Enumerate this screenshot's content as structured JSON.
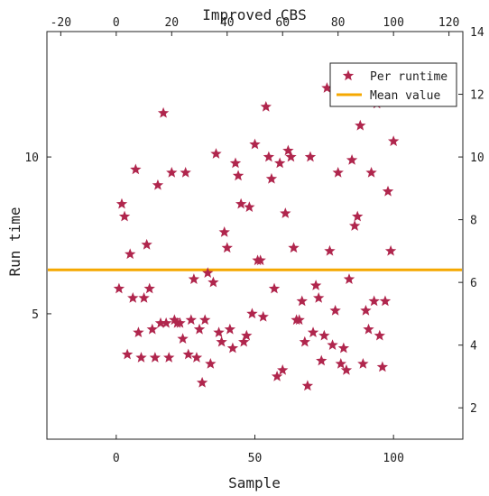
{
  "chart_data": {
    "type": "scatter",
    "title": "",
    "xlabel": "Sample",
    "ylabel": "Run time",
    "top_xlabel": "Improved CBS",
    "xlim": [
      -25,
      125
    ],
    "ylim": [
      1,
      14
    ],
    "bottom_xticks": [
      0,
      50,
      100
    ],
    "top_xticks": [
      -20,
      0,
      20,
      40,
      60,
      80,
      100,
      120
    ],
    "left_yticks": [
      5,
      10
    ],
    "right_yticks": [
      2,
      4,
      6,
      8,
      10,
      12,
      14
    ],
    "grid": false,
    "legend_position": "top-right",
    "colors": {
      "points": "#b0264d",
      "mean": "#f5a800",
      "axes": "#222222"
    },
    "series": [
      {
        "name": "Per runtime",
        "marker": "star",
        "x": [
          1,
          2,
          3,
          4,
          5,
          6,
          7,
          8,
          9,
          10,
          11,
          12,
          13,
          14,
          15,
          16,
          17,
          18,
          19,
          20,
          21,
          22,
          23,
          24,
          25,
          26,
          27,
          28,
          29,
          30,
          31,
          32,
          33,
          34,
          35,
          36,
          37,
          38,
          39,
          40,
          41,
          42,
          43,
          44,
          45,
          46,
          47,
          48,
          49,
          50,
          51,
          52,
          53,
          54,
          55,
          56,
          57,
          58,
          59,
          60,
          61,
          62,
          63,
          64,
          65,
          66,
          67,
          68,
          69,
          70,
          71,
          72,
          73,
          74,
          75,
          76,
          77,
          78,
          79,
          80,
          81,
          82,
          83,
          84,
          85,
          86,
          87,
          88,
          89,
          90,
          91,
          92,
          93,
          94,
          95,
          96,
          97,
          98,
          99,
          100
        ],
        "y": [
          5.8,
          8.5,
          8.1,
          3.7,
          6.9,
          5.5,
          9.6,
          4.4,
          3.6,
          5.5,
          7.2,
          5.8,
          4.5,
          3.6,
          9.1,
          4.7,
          11.4,
          4.7,
          3.6,
          9.5,
          4.8,
          4.7,
          4.7,
          4.2,
          9.5,
          3.7,
          4.8,
          6.1,
          3.6,
          4.5,
          2.8,
          4.8,
          6.3,
          3.4,
          6.0,
          10.1,
          4.4,
          4.1,
          7.6,
          7.1,
          4.5,
          3.9,
          9.8,
          9.4,
          8.5,
          4.1,
          4.3,
          8.4,
          5.0,
          10.4,
          6.7,
          6.7,
          4.9,
          11.6,
          10.0,
          9.3,
          5.8,
          3.0,
          9.8,
          3.2,
          8.2,
          10.2,
          10.0,
          7.1,
          4.8,
          4.8,
          5.4,
          4.1,
          2.7,
          10.0,
          4.4,
          5.9,
          5.5,
          3.5,
          4.3,
          12.2,
          7.0,
          4.0,
          5.1,
          9.5,
          3.4,
          3.9,
          3.2,
          6.1,
          9.9,
          7.8,
          8.1,
          11.0,
          3.4,
          5.1,
          4.5,
          9.5,
          5.4,
          11.7,
          4.3,
          3.3,
          5.4,
          8.9,
          7.0,
          10.5
        ]
      },
      {
        "name": "Mean value",
        "type": "hline",
        "y": 6.4
      }
    ]
  }
}
